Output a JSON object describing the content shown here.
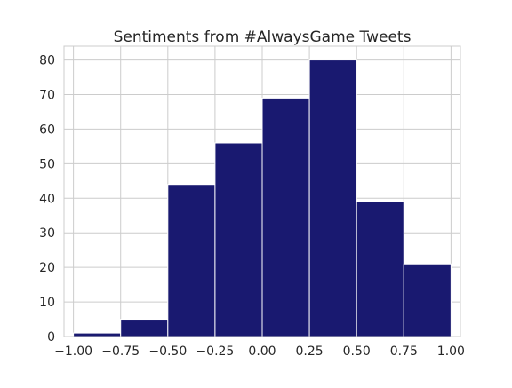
{
  "chart_data": {
    "type": "bar",
    "subtype": "histogram",
    "title": "Sentiments from #AlwaysGame Tweets",
    "xlabel": "",
    "ylabel": "",
    "bin_edges": [
      -1.0,
      -0.75,
      -0.5,
      -0.25,
      0.0,
      0.25,
      0.5,
      0.75,
      1.0
    ],
    "values": [
      1,
      5,
      44,
      56,
      69,
      80,
      39,
      21
    ],
    "xlim": [
      -1.05,
      1.05
    ],
    "ylim": [
      0,
      84
    ],
    "x_ticks": [
      -1.0,
      -0.75,
      -0.5,
      -0.25,
      0.0,
      0.25,
      0.5,
      0.75,
      1.0
    ],
    "x_tick_labels": [
      "−1.00",
      "−0.75",
      "−0.50",
      "−0.25",
      "0.00",
      "0.25",
      "0.50",
      "0.75",
      "1.00"
    ],
    "y_ticks": [
      0,
      10,
      20,
      30,
      40,
      50,
      60,
      70,
      80
    ],
    "y_tick_labels": [
      "0",
      "10",
      "20",
      "30",
      "40",
      "50",
      "60",
      "70",
      "80"
    ],
    "grid": true,
    "bar_color": "#191970",
    "bar_edge_color": "#ffffff",
    "grid_color": "#cccccc",
    "axes_edge_color": "#cccccc"
  }
}
